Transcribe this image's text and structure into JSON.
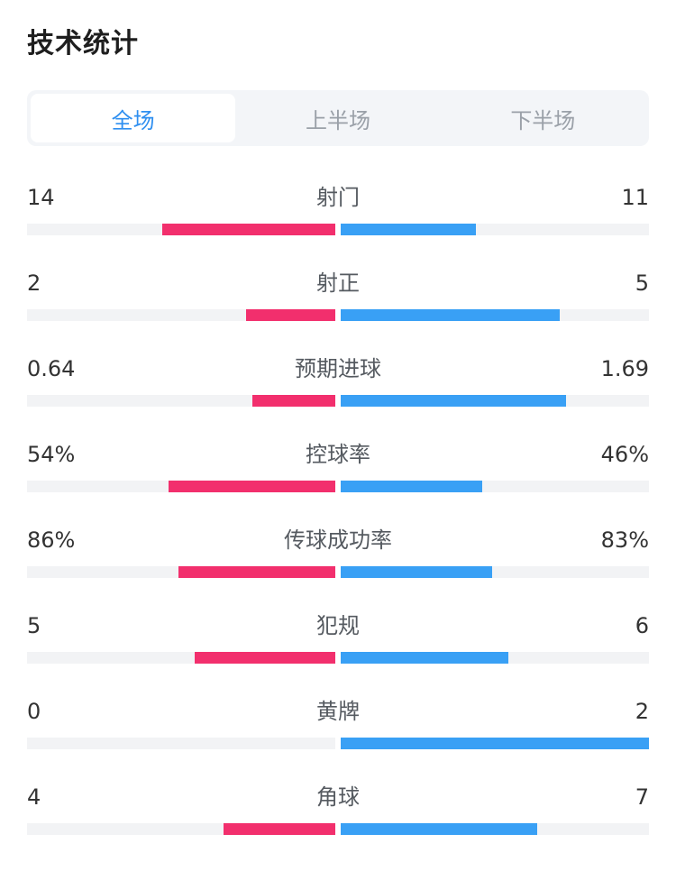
{
  "title": "技术统计",
  "tabs": [
    {
      "label": "全场",
      "active": true
    },
    {
      "label": "上半场",
      "active": false
    },
    {
      "label": "下半场",
      "active": false
    }
  ],
  "colors": {
    "home": "#f22f6d",
    "away": "#39a0f5",
    "track": "#f2f3f5",
    "tab_active": "#2f8ff0"
  },
  "stats": [
    {
      "label": "射门",
      "left": "14",
      "right": "11",
      "left_fill": 0.56,
      "right_fill": 0.44
    },
    {
      "label": "射正",
      "left": "2",
      "right": "5",
      "left_fill": 0.29,
      "right_fill": 0.71
    },
    {
      "label": "预期进球",
      "left": "0.64",
      "right": "1.69",
      "left_fill": 0.27,
      "right_fill": 0.73
    },
    {
      "label": "控球率",
      "left": "54%",
      "right": "46%",
      "left_fill": 0.54,
      "right_fill": 0.46
    },
    {
      "label": "传球成功率",
      "left": "86%",
      "right": "83%",
      "left_fill": 0.51,
      "right_fill": 0.49
    },
    {
      "label": "犯规",
      "left": "5",
      "right": "6",
      "left_fill": 0.455,
      "right_fill": 0.545
    },
    {
      "label": "黄牌",
      "left": "0",
      "right": "2",
      "left_fill": 0.0,
      "right_fill": 1.0
    },
    {
      "label": "角球",
      "left": "4",
      "right": "7",
      "left_fill": 0.364,
      "right_fill": 0.636
    }
  ]
}
